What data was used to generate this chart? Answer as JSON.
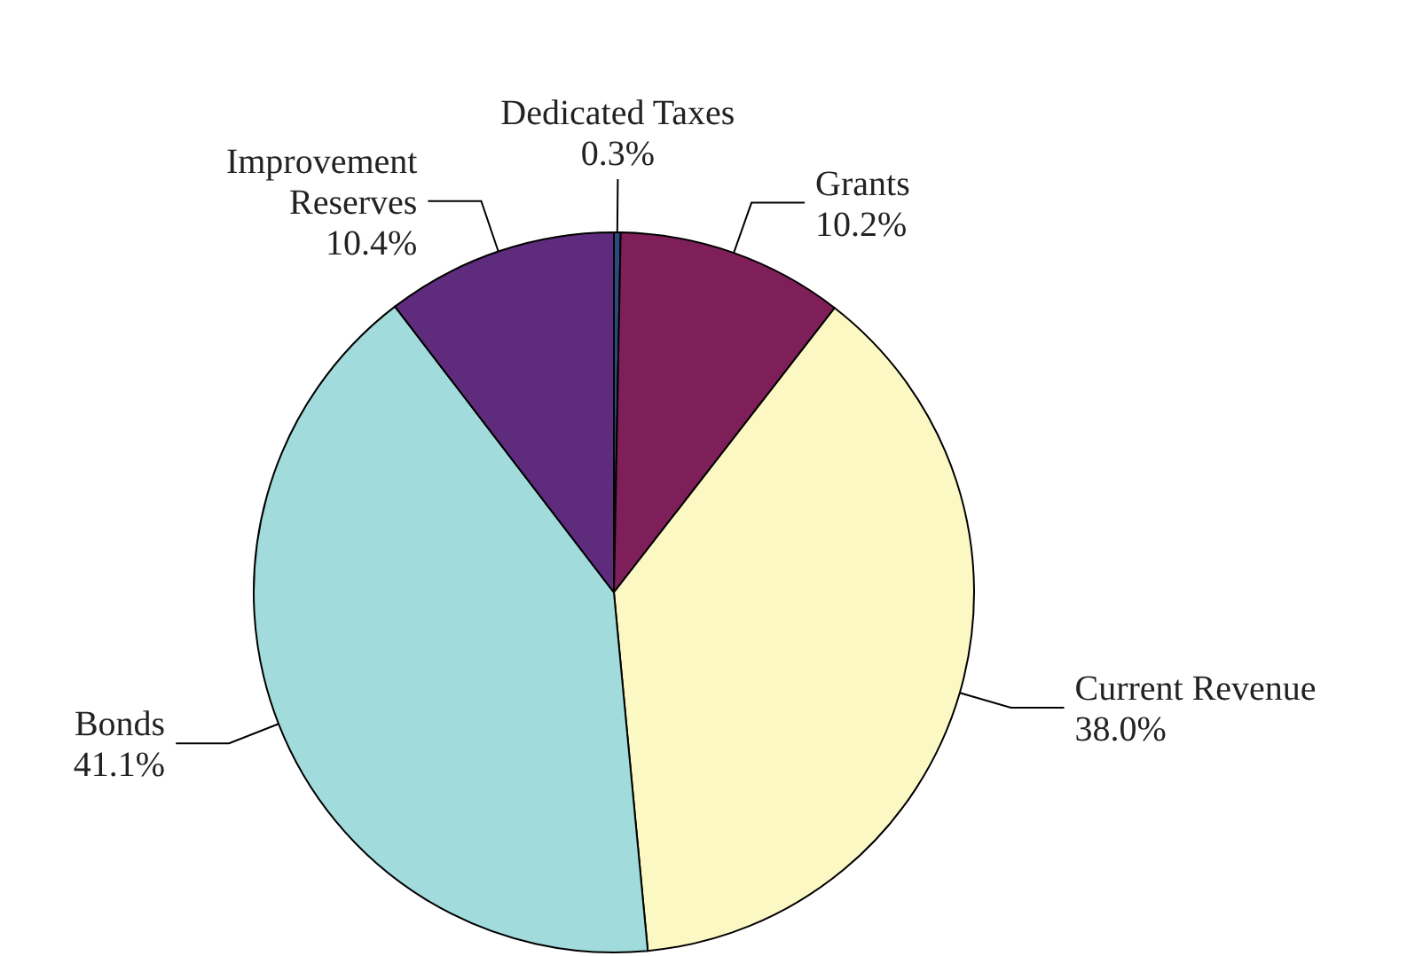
{
  "chart_data": {
    "type": "pie",
    "categories": [
      "Dedicated Taxes",
      "Grants",
      "Current Revenue",
      "Bonds",
      "Improvement Reserves"
    ],
    "values": [
      0.3,
      10.2,
      38.0,
      41.1,
      10.4
    ],
    "colors": [
      "#2e4a7d",
      "#7f1f5a",
      "#fbf8c4",
      "#a2dbdb",
      "#5e2b7d"
    ],
    "value_labels": [
      "0.3%",
      "10.2%",
      "38.0%",
      "41.1%",
      "10.4%"
    ]
  }
}
